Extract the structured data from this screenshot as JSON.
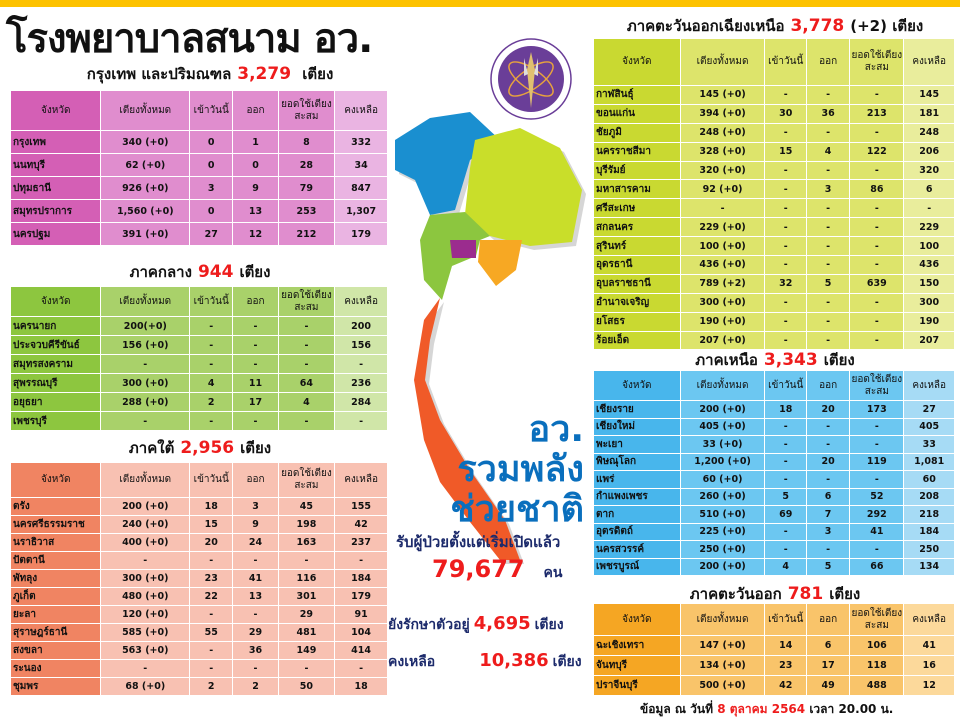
{
  "title": "โรงพยาบาลสนาม อว.",
  "columns": [
    "จังหวัด",
    "เตียงทั้งหมด",
    "เข้าวันนี้",
    "ออก",
    "ยอดใช้เตียงสะสม",
    "คงเหลือ"
  ],
  "colors": {
    "accent_red": "#ee1c1c",
    "slogan_blue": "#0a6fbd",
    "top_bar": "#fdc200"
  },
  "regions": {
    "bangkok": {
      "label": "กรุงเทพ และปริมณฑล",
      "total": "3,279",
      "unit": "เตียง",
      "colors": [
        "#d45fb5",
        "#e08dce",
        "#eab4e2"
      ],
      "rows": [
        [
          "กรุงเทพ",
          "340 (+0)",
          "0",
          "1",
          "8",
          "332"
        ],
        [
          "นนทบุรี",
          "62 (+0)",
          "0",
          "0",
          "28",
          "34"
        ],
        [
          "ปทุมธานี",
          "926 (+0)",
          "3",
          "9",
          "79",
          "847"
        ],
        [
          "สมุทรปราการ",
          "1,560 (+0)",
          "0",
          "13",
          "253",
          "1,307"
        ],
        [
          "นครปฐม",
          "391 (+0)",
          "27",
          "12",
          "212",
          "179"
        ]
      ]
    },
    "central": {
      "label": "ภาคกลาง",
      "total": "944",
      "unit": "เตียง",
      "colors": [
        "#8dc63f",
        "#a9d16a",
        "#d0e6a8"
      ],
      "rows": [
        [
          "นครนายก",
          "200(+0)",
          "-",
          "-",
          "-",
          "200"
        ],
        [
          "ประจวบคีรีขันธ์",
          "156 (+0)",
          "-",
          "-",
          "-",
          "156"
        ],
        [
          "สมุทรสงคราม",
          "-",
          "-",
          "-",
          "-",
          "-"
        ],
        [
          "สุพรรณบุรี",
          "300 (+0)",
          "4",
          "11",
          "64",
          "236"
        ],
        [
          "อยุธยา",
          "288 (+0)",
          "2",
          "17",
          "4",
          "284"
        ],
        [
          "เพชรบุรี",
          "-",
          "-",
          "-",
          "-",
          "-"
        ]
      ]
    },
    "south": {
      "label": "ภาคใต้",
      "total": "2,956",
      "unit": "เตียง",
      "colors": [
        "#f08462",
        "#f8c1b2",
        "#f8c1b2"
      ],
      "rows": [
        [
          "ตรัง",
          "200 (+0)",
          "18",
          "3",
          "45",
          "155"
        ],
        [
          "นครศรีธรรมราช",
          "240 (+0)",
          "15",
          "9",
          "198",
          "42"
        ],
        [
          "นราธิวาส",
          "400 (+0)",
          "20",
          "24",
          "163",
          "237"
        ],
        [
          "ปัตตานี",
          "-",
          "-",
          "-",
          "-",
          "-"
        ],
        [
          "พัทลุง",
          "300 (+0)",
          "23",
          "41",
          "116",
          "184"
        ],
        [
          "ภูเก็ต",
          "480 (+0)",
          "22",
          "13",
          "301",
          "179"
        ],
        [
          "ยะลา",
          "120 (+0)",
          "-",
          "-",
          "29",
          "91"
        ],
        [
          "สุราษฎร์ธานี",
          "585 (+0)",
          "55",
          "29",
          "481",
          "104"
        ],
        [
          "สงขลา",
          "563 (+0)",
          "-",
          "36",
          "149",
          "414"
        ],
        [
          "ระนอง",
          "-",
          "-",
          "-",
          "-",
          "-"
        ],
        [
          "ชุมพร",
          "68 (+0)",
          "2",
          "2",
          "50",
          "18"
        ]
      ]
    },
    "northeast": {
      "label": "ภาคตะวันออกเฉียงเหนือ",
      "total": "3,778",
      "extra": "(+2)",
      "unit": "เตียง",
      "colors": [
        "#c9d931",
        "#dde46b",
        "#e9ed9c"
      ],
      "rows": [
        [
          "กาฬสินธุ์",
          "145 (+0)",
          "-",
          "-",
          "-",
          "145"
        ],
        [
          "ขอนแก่น",
          "394 (+0)",
          "30",
          "36",
          "213",
          "181"
        ],
        [
          "ชัยภูมิ",
          "248 (+0)",
          "-",
          "-",
          "-",
          "248"
        ],
        [
          "นครราชสีมา",
          "328 (+0)",
          "15",
          "4",
          "122",
          "206"
        ],
        [
          "บุรีรัมย์",
          "320 (+0)",
          "-",
          "-",
          "-",
          "320"
        ],
        [
          "มหาสารคาม",
          "92 (+0)",
          "-",
          "3",
          "86",
          "6"
        ],
        [
          "ศรีสะเกษ",
          "-",
          "-",
          "-",
          "-",
          "-"
        ],
        [
          "สกลนคร",
          "229 (+0)",
          "-",
          "-",
          "-",
          "229"
        ],
        [
          "สุรินทร์",
          "100 (+0)",
          "-",
          "-",
          "-",
          "100"
        ],
        [
          "อุดรธานี",
          "436 (+0)",
          "-",
          "-",
          "-",
          "436"
        ],
        [
          "อุบลราชธานี",
          "789 (+2)",
          "32",
          "5",
          "639",
          "150"
        ],
        [
          "อำนาจเจริญ",
          "300 (+0)",
          "-",
          "-",
          "-",
          "300"
        ],
        [
          "ยโสธร",
          "190 (+0)",
          "-",
          "-",
          "-",
          "190"
        ],
        [
          "ร้อยเอ็ด",
          "207 (+0)",
          "-",
          "-",
          "-",
          "207"
        ]
      ]
    },
    "north": {
      "label": "ภาคเหนือ",
      "total": "3,343",
      "unit": "เตียง",
      "colors": [
        "#48b6ec",
        "#6cc7f1",
        "#a6dbf5"
      ],
      "rows": [
        [
          "เชียงราย",
          "200 (+0)",
          "18",
          "20",
          "173",
          "27"
        ],
        [
          "เชียงใหม่",
          "405 (+0)",
          "-",
          "-",
          "-",
          "405"
        ],
        [
          "พะเยา",
          "33 (+0)",
          "-",
          "-",
          "-",
          "33"
        ],
        [
          "พิษณุโลก",
          "1,200 (+0)",
          "-",
          "20",
          "119",
          "1,081"
        ],
        [
          "แพร่",
          "60 (+0)",
          "-",
          "-",
          "-",
          "60"
        ],
        [
          "กำแพงเพชร",
          "260 (+0)",
          "5",
          "6",
          "52",
          "208"
        ],
        [
          "ตาก",
          "510 (+0)",
          "69",
          "7",
          "292",
          "218"
        ],
        [
          "อุตรดิตถ์",
          "225 (+0)",
          "-",
          "3",
          "41",
          "184"
        ],
        [
          "นครสวรรค์",
          "250 (+0)",
          "-",
          "-",
          "-",
          "250"
        ],
        [
          "เพชรบูรณ์",
          "200 (+0)",
          "4",
          "5",
          "66",
          "134"
        ]
      ]
    },
    "east": {
      "label": "ภาคตะวันออก",
      "total": "781",
      "unit": "เตียง",
      "colors": [
        "#f5a623",
        "#f9c46a",
        "#fcd99b"
      ],
      "rows": [
        [
          "ฉะเชิงเทรา",
          "147 (+0)",
          "14",
          "6",
          "106",
          "41"
        ],
        [
          "จันทบุรี",
          "134 (+0)",
          "23",
          "17",
          "118",
          "16"
        ],
        [
          "ปราจีนบุรี",
          "500 (+0)",
          "42",
          "49",
          "488",
          "12"
        ]
      ]
    }
  },
  "slogan": [
    "อว.",
    "รวมพลัง",
    "ช่วยชาติ"
  ],
  "summary": {
    "received_label": "รับผู้ป่วยตั้งแต่เริ่มเปิดแล้ว",
    "received": "79,677",
    "received_unit": "คน",
    "treating_label": "ยังรักษาตัวอยู่",
    "treating": "4,695",
    "treating_unit": "เตียง",
    "remaining_label": "คงเหลือ",
    "remaining": "10,386",
    "remaining_unit": "เตียง"
  },
  "footer": {
    "prefix": "ข้อมูล ณ วันที่",
    "date": "8 ตุลาคม  2564",
    "time": "เวลา  20.00 น."
  },
  "map": {
    "region_colors": {
      "north": "#1a8fd0",
      "northeast": "#c9de2a",
      "central": "#8cc63f",
      "bangkok": "#9b2c8e",
      "east": "#f7a823",
      "south": "#f05a28"
    }
  }
}
